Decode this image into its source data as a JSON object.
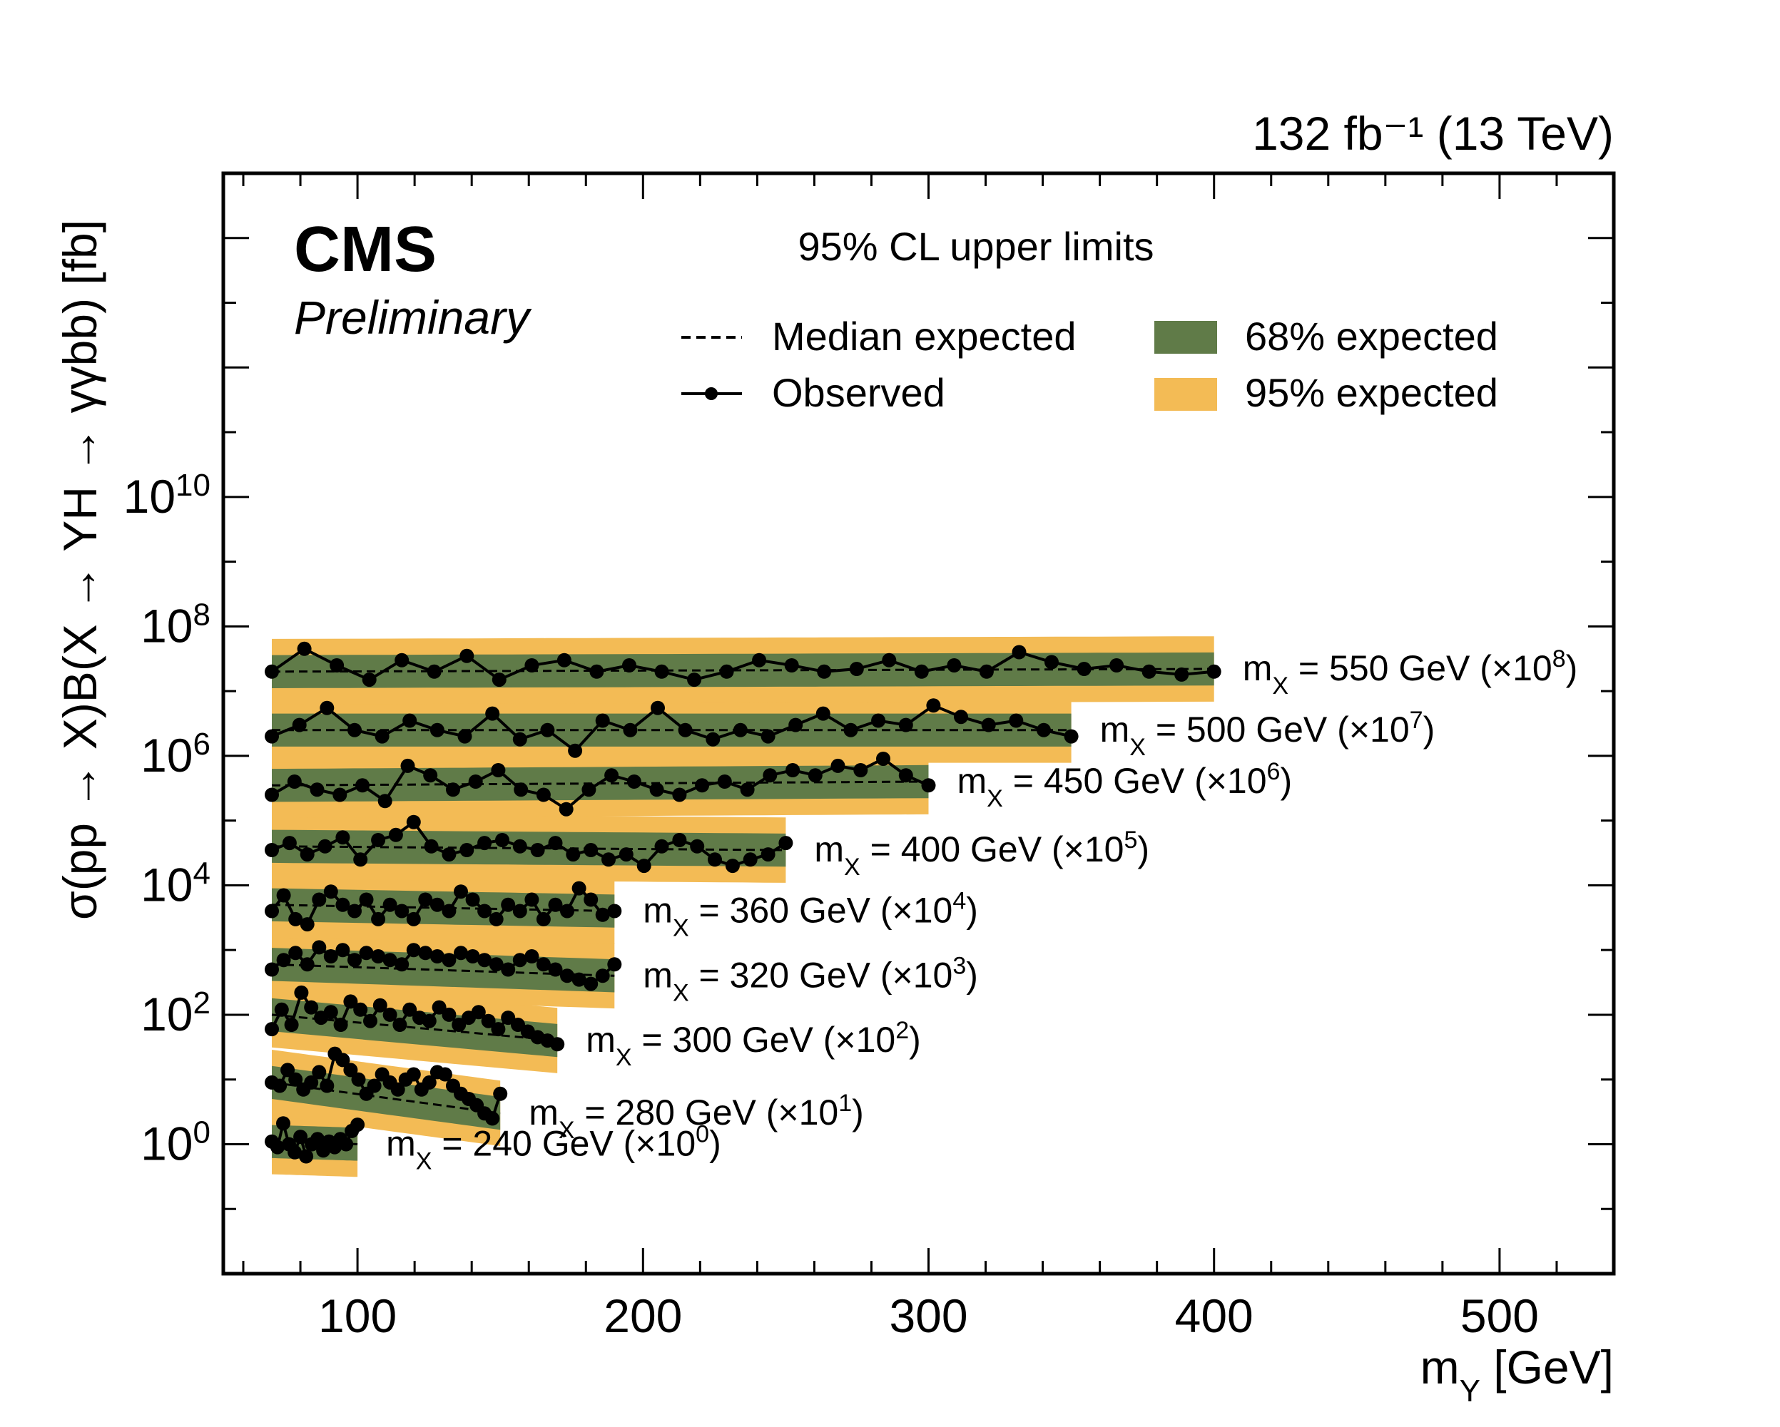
{
  "lumi_label": "132 fb⁻¹ (13 TeV)",
  "experiment": "CMS",
  "status": "Preliminary",
  "plot_title": "95% CL upper limits",
  "legend": {
    "median": "Median expected",
    "observed": "Observed",
    "band68": "68% expected",
    "band95": "95% expected"
  },
  "colors": {
    "band68": "#607b48",
    "band95": "#f3bb55",
    "observed": "#000000",
    "frame": "#000000"
  },
  "chart_data": {
    "type": "line",
    "title": "95% CL upper limits",
    "xlabel": "m_Y [GeV]",
    "ylabel": "σ(pp → X)B(X → YH → γγbb) [fb]",
    "xlim": [
      53,
      540
    ],
    "ylim": [
      0.01,
      1000000000000000.0
    ],
    "y_scale": "log",
    "x_ticks": [
      100,
      200,
      300,
      400,
      500
    ],
    "y_ticks": [
      {
        "value": 1,
        "base": "10",
        "exp": "0"
      },
      {
        "value": 100,
        "base": "10",
        "exp": "2"
      },
      {
        "value": 10000,
        "base": "10",
        "exp": "4"
      },
      {
        "value": 1000000,
        "base": "10",
        "exp": "6"
      },
      {
        "value": 100000000,
        "base": "10",
        "exp": "8"
      },
      {
        "value": 10000000000,
        "base": "10",
        "exp": "10"
      }
    ],
    "series": [
      {
        "name": "m_X = 240 GeV (×10⁰)",
        "mx": 240,
        "scale_exp": 0,
        "x_range": [
          70,
          100
        ],
        "expected": [
          1.1,
          1.0
        ],
        "observed": [
          1.1,
          0.9,
          2.1,
          1.0,
          0.75,
          1.3,
          0.65,
          1.0,
          1.2,
          0.8,
          1.1,
          0.9,
          1.2,
          1.0,
          1.6,
          2.0
        ]
      },
      {
        "name": "m_X = 280 GeV (×10¹)",
        "mx": 280,
        "scale_exp": 1,
        "x_range": [
          70,
          150
        ],
        "expected": [
          9,
          3
        ],
        "observed": [
          9,
          8,
          14,
          10,
          7,
          9,
          13,
          8,
          25,
          20,
          14,
          10,
          6,
          8,
          12,
          9,
          7,
          10,
          12,
          7,
          9,
          13,
          12,
          8,
          6,
          5,
          4,
          3,
          2.5,
          6
        ]
      },
      {
        "name": "m_X = 300 GeV (×10²)",
        "mx": 300,
        "scale_exp": 2,
        "x_range": [
          70,
          170
        ],
        "expected": [
          100,
          40
        ],
        "observed": [
          60,
          120,
          70,
          220,
          130,
          90,
          110,
          70,
          160,
          120,
          80,
          140,
          100,
          70,
          120,
          90,
          80,
          130,
          100,
          70,
          90,
          110,
          80,
          60,
          90,
          70,
          55,
          45,
          40,
          35
        ]
      },
      {
        "name": "m_X = 320 GeV (×10³)",
        "mx": 320,
        "scale_exp": 3,
        "x_range": [
          70,
          190
        ],
        "expected": [
          600,
          400
        ],
        "observed": [
          500,
          700,
          900,
          600,
          1100,
          800,
          1000,
          700,
          900,
          800,
          700,
          600,
          1000,
          900,
          800,
          700,
          900,
          800,
          700,
          600,
          500,
          700,
          800,
          600,
          500,
          400,
          350,
          300,
          400,
          600
        ]
      },
      {
        "name": "m_X = 360 GeV (×10⁴)",
        "mx": 360,
        "scale_exp": 4,
        "x_range": [
          70,
          190
        ],
        "expected": [
          5000,
          4000
        ],
        "observed": [
          4000,
          7000,
          3000,
          2500,
          6000,
          8000,
          5000,
          4000,
          6000,
          3000,
          5000,
          4000,
          3000,
          6000,
          5000,
          4000,
          8000,
          6000,
          4000,
          3000,
          5000,
          4000,
          6000,
          3000,
          5000,
          4000,
          9000,
          6000,
          3500,
          4000
        ]
      },
      {
        "name": "m_X = 400 GeV (×10⁵)",
        "mx": 400,
        "scale_exp": 5,
        "x_range": [
          70,
          250
        ],
        "expected": [
          40000,
          35000
        ],
        "observed": [
          35000,
          45000,
          30000,
          40000,
          55000,
          25000,
          50000,
          60000,
          95000,
          40000,
          30000,
          35000,
          45000,
          50000,
          40000,
          35000,
          45000,
          30000,
          35000,
          25000,
          30000,
          20000,
          40000,
          50000,
          40000,
          25000,
          20000,
          25000,
          30000,
          45000
        ]
      },
      {
        "name": "m_X = 450 GeV (×10⁶)",
        "mx": 450,
        "scale_exp": 6,
        "x_range": [
          70,
          300
        ],
        "expected": [
          350000,
          400000
        ],
        "observed": [
          250000,
          400000,
          300000,
          250000,
          350000,
          200000,
          700000,
          500000,
          300000,
          400000,
          600000,
          300000,
          250000,
          150000,
          300000,
          500000,
          400000,
          300000,
          250000,
          350000,
          400000,
          300000,
          500000,
          600000,
          500000,
          700000,
          600000,
          900000,
          500000,
          350000
        ]
      },
      {
        "name": "m_X = 500 GeV (×10⁷)",
        "mx": 500,
        "scale_exp": 7,
        "x_range": [
          70,
          350
        ],
        "expected": [
          2500000,
          2500000
        ],
        "observed": [
          2000000,
          3000000,
          5500000,
          2500000,
          2000000,
          3500000,
          2500000,
          2000000,
          4500000,
          1800000,
          2500000,
          1200000,
          3500000,
          2500000,
          5500000,
          2500000,
          1800000,
          2500000,
          2000000,
          3000000,
          4500000,
          2500000,
          3500000,
          3000000,
          6000000,
          4000000,
          3000000,
          3500000,
          2500000,
          2000000
        ]
      },
      {
        "name": "m_X = 550 GeV (×10⁸)",
        "mx": 550,
        "scale_exp": 8,
        "x_range": [
          70,
          400
        ],
        "expected": [
          20000000,
          22000000
        ],
        "observed": [
          20000000,
          45000000,
          25000000,
          15000000,
          30000000,
          20000000,
          35000000,
          15000000,
          25000000,
          30000000,
          20000000,
          25000000,
          20000000,
          15000000,
          20000000,
          30000000,
          25000000,
          20000000,
          22000000,
          30000000,
          20000000,
          25000000,
          20000000,
          40000000,
          28000000,
          22000000,
          25000000,
          20000000,
          18000000,
          20000000
        ]
      }
    ],
    "band_widths": {
      "band68_factor": 1.8,
      "band95_factor": 3.2
    },
    "grid": false,
    "legend_position": "top-center"
  }
}
